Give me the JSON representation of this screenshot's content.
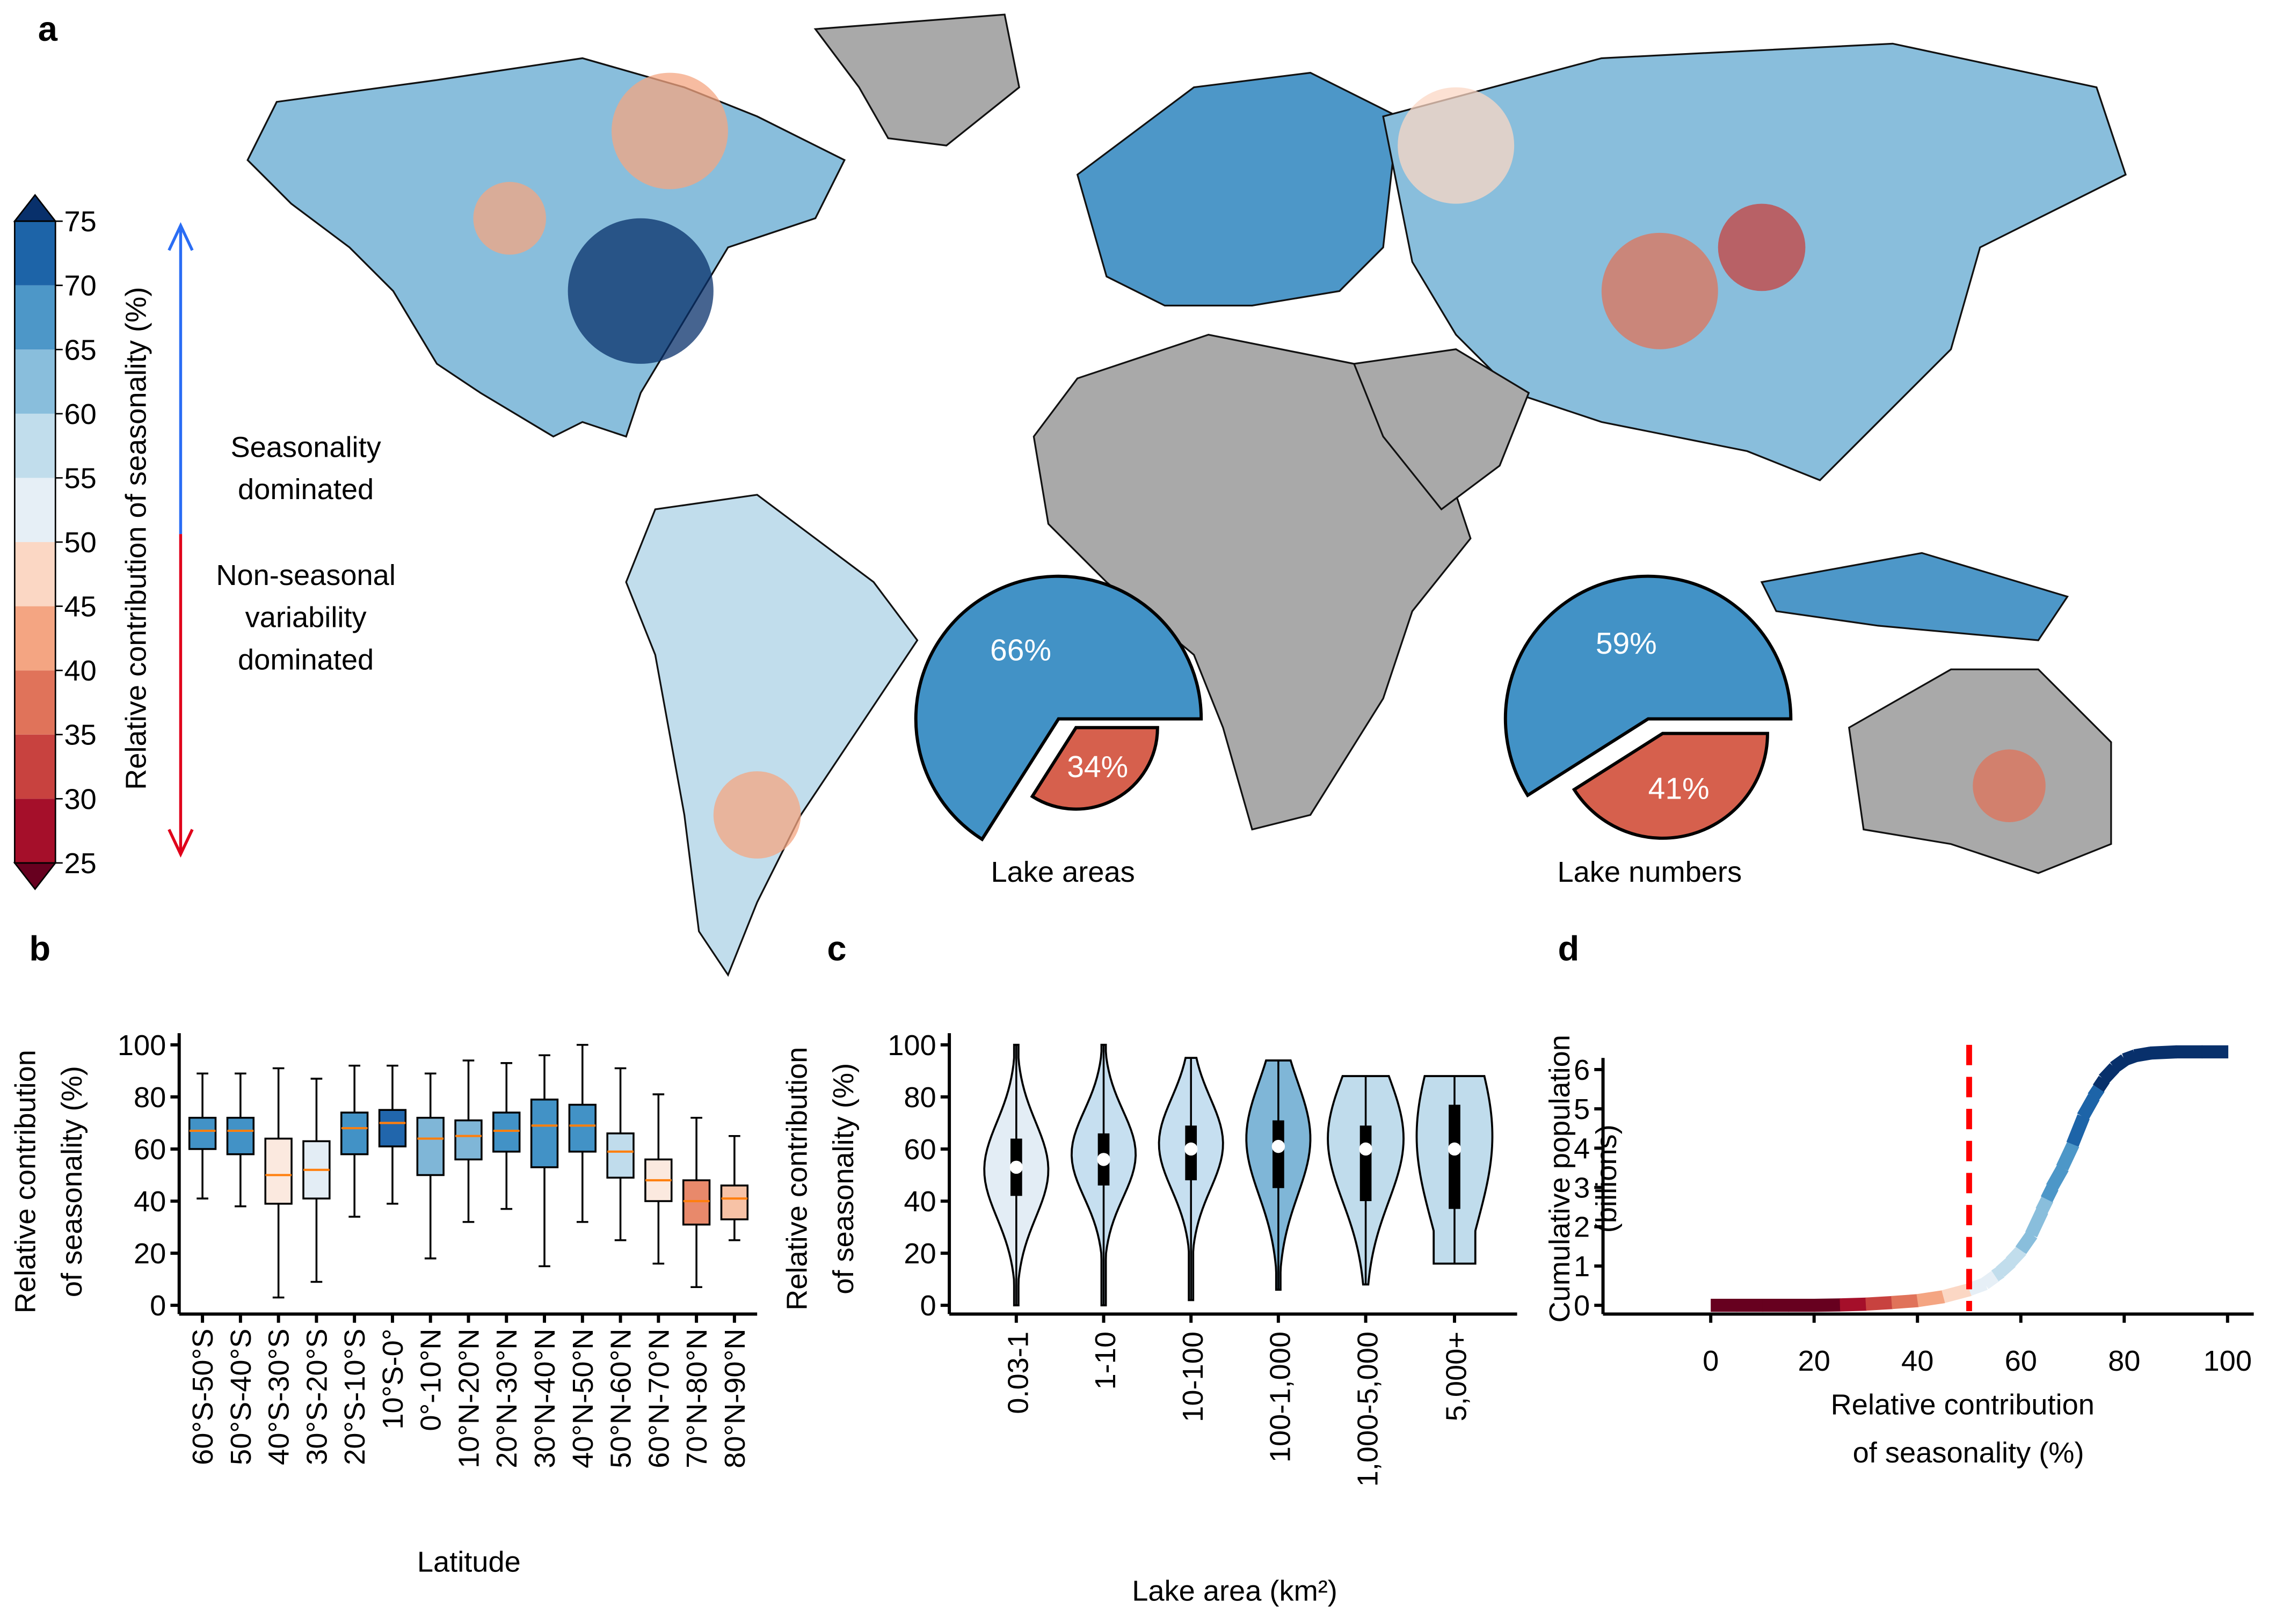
{
  "panels": {
    "a": "a",
    "b": "b",
    "c": "c",
    "d": "d"
  },
  "map": {
    "colorbar": {
      "label": "Relative contribution of seasonality (%)",
      "ticks": [
        "75",
        "70",
        "65",
        "60",
        "55",
        "50",
        "45",
        "40",
        "35",
        "30",
        "25"
      ],
      "bin_colors": [
        "#a50f2a",
        "#c8423f",
        "#e0735a",
        "#f4a582",
        "#fbd7c4",
        "#e6eff6",
        "#c1ddec",
        "#89bedc",
        "#4d97c8",
        "#1d64a8"
      ],
      "over_color": "#08306b",
      "under_color": "#67001f"
    },
    "annotation_top": [
      "Seasonality",
      "dominated"
    ],
    "annotation_bottom": [
      "Non-seasonal",
      "variability",
      "dominated"
    ],
    "arrow_colors": {
      "up": "#2a6df4",
      "down": "#e0001a"
    },
    "land_nodata_color": "#a9a9a9",
    "pies": [
      {
        "title": "Lake areas",
        "slices": [
          {
            "label": "66%",
            "value": 66,
            "color": "#4292c6"
          },
          {
            "label": "34%",
            "value": 34,
            "color": "#d6604d"
          }
        ]
      },
      {
        "title": "Lake numbers",
        "slices": [
          {
            "label": "59%",
            "value": 59,
            "color": "#4292c6"
          },
          {
            "label": "41%",
            "value": 41,
            "color": "#d6604d"
          }
        ]
      }
    ]
  },
  "chart_data": [
    {
      "type": "box",
      "panel": "b",
      "xlabel": "Latitude",
      "ylabel": [
        "Relative contribution",
        "of seasonality (%)"
      ],
      "ylim": [
        0,
        100
      ],
      "yticks": [
        "0",
        "20",
        "40",
        "60",
        "80",
        "100"
      ],
      "median_color": "#ff7f0e",
      "categories": [
        "60°S-50°S",
        "50°S-40°S",
        "40°S-30°S",
        "30°S-20°S",
        "20°S-10°S",
        "10°S-0°",
        "0°-10°N",
        "10°N-20°N",
        "20°N-30°N",
        "30°N-40°N",
        "40°N-50°N",
        "50°N-60°N",
        "60°N-70°N",
        "70°N-80°N",
        "80°N-90°N"
      ],
      "boxes": [
        {
          "min": 41,
          "q1": 60,
          "median": 67,
          "q3": 72,
          "max": 89,
          "color": "#4292c6"
        },
        {
          "min": 38,
          "q1": 58,
          "median": 67,
          "q3": 72,
          "max": 89,
          "color": "#4292c6"
        },
        {
          "min": 3,
          "q1": 39,
          "median": 50,
          "q3": 64,
          "max": 91,
          "color": "#fbe9df"
        },
        {
          "min": 9,
          "q1": 41,
          "median": 52,
          "q3": 63,
          "max": 87,
          "color": "#e3edf5"
        },
        {
          "min": 34,
          "q1": 58,
          "median": 68,
          "q3": 74,
          "max": 92,
          "color": "#4292c6"
        },
        {
          "min": 39,
          "q1": 61,
          "median": 70,
          "q3": 75,
          "max": 92,
          "color": "#2166ac"
        },
        {
          "min": 18,
          "q1": 50,
          "median": 64,
          "q3": 72,
          "max": 89,
          "color": "#7fb6d7"
        },
        {
          "min": 32,
          "q1": 56,
          "median": 65,
          "q3": 71,
          "max": 94,
          "color": "#7fb6d7"
        },
        {
          "min": 37,
          "q1": 59,
          "median": 67,
          "q3": 74,
          "max": 93,
          "color": "#4292c6"
        },
        {
          "min": 15,
          "q1": 53,
          "median": 69,
          "q3": 79,
          "max": 96,
          "color": "#4292c6"
        },
        {
          "min": 32,
          "q1": 59,
          "median": 69,
          "q3": 77,
          "max": 100,
          "color": "#4292c6"
        },
        {
          "min": 25,
          "q1": 49,
          "median": 59,
          "q3": 66,
          "max": 91,
          "color": "#c0dcec"
        },
        {
          "min": 16,
          "q1": 40,
          "median": 48,
          "q3": 56,
          "max": 81,
          "color": "#fbe9df"
        },
        {
          "min": 7,
          "q1": 31,
          "median": 40,
          "q3": 48,
          "max": 72,
          "color": "#e8896b"
        },
        {
          "min": 25,
          "q1": 33,
          "median": 41,
          "q3": 46,
          "max": 65,
          "color": "#f7c2a6"
        }
      ]
    },
    {
      "type": "violin",
      "panel": "c",
      "xlabel": "Lake area (km²)",
      "ylabel": [
        "Relative contribution",
        "of seasonality (%)"
      ],
      "ylim": [
        0,
        100
      ],
      "yticks": [
        "0",
        "20",
        "40",
        "60",
        "80",
        "100"
      ],
      "categories": [
        "0.03-1",
        "1-10",
        "10-100",
        "100-1,000",
        "1,000-5,000",
        "5,000+"
      ],
      "violins": [
        {
          "min": 0,
          "q1": 42,
          "median": 53,
          "q3": 64,
          "max": 100,
          "mode": 52,
          "color": "#e3edf5"
        },
        {
          "min": 0,
          "q1": 46,
          "median": 56,
          "q3": 66,
          "max": 100,
          "mode": 58,
          "color": "#c6dff0"
        },
        {
          "min": 2,
          "q1": 48,
          "median": 60,
          "q3": 69,
          "max": 95,
          "mode": 62,
          "color": "#c6dff0"
        },
        {
          "min": 6,
          "q1": 45,
          "median": 61,
          "q3": 71,
          "max": 94,
          "mode": 64,
          "color": "#7fb6d7"
        },
        {
          "min": 8,
          "q1": 40,
          "median": 60,
          "q3": 69,
          "max": 88,
          "mode": 64,
          "color": "#c0dcec"
        },
        {
          "min": 16,
          "q1": 37,
          "median": 60,
          "q3": 77,
          "max": 88,
          "mode": 65,
          "color": "#c0dcec"
        }
      ]
    },
    {
      "type": "line",
      "panel": "d",
      "xlabel": [
        "Relative contribution",
        "of seasonality (%)"
      ],
      "ylabel": [
        "Cumulative population",
        "(billions)"
      ],
      "xlim": [
        0,
        100
      ],
      "ylim": [
        0,
        6.5
      ],
      "xticks": [
        "0",
        "20",
        "40",
        "60",
        "80",
        "100"
      ],
      "yticks": [
        "0",
        "1",
        "2",
        "3",
        "4",
        "5",
        "6"
      ],
      "threshold_x": 50,
      "threshold_color": "#ff0000",
      "x": [
        0,
        10,
        20,
        25,
        30,
        35,
        40,
        45,
        50,
        53,
        56,
        58,
        60,
        62,
        64,
        66,
        68,
        70,
        72,
        74,
        76,
        78,
        80,
        82,
        85,
        90,
        100
      ],
      "y": [
        0,
        0,
        0,
        0.01,
        0.03,
        0.07,
        0.12,
        0.22,
        0.4,
        0.55,
        0.85,
        1.1,
        1.4,
        1.8,
        2.4,
        3.0,
        3.5,
        4.1,
        4.8,
        5.3,
        5.75,
        6.05,
        6.25,
        6.35,
        6.42,
        6.45,
        6.45
      ]
    }
  ]
}
